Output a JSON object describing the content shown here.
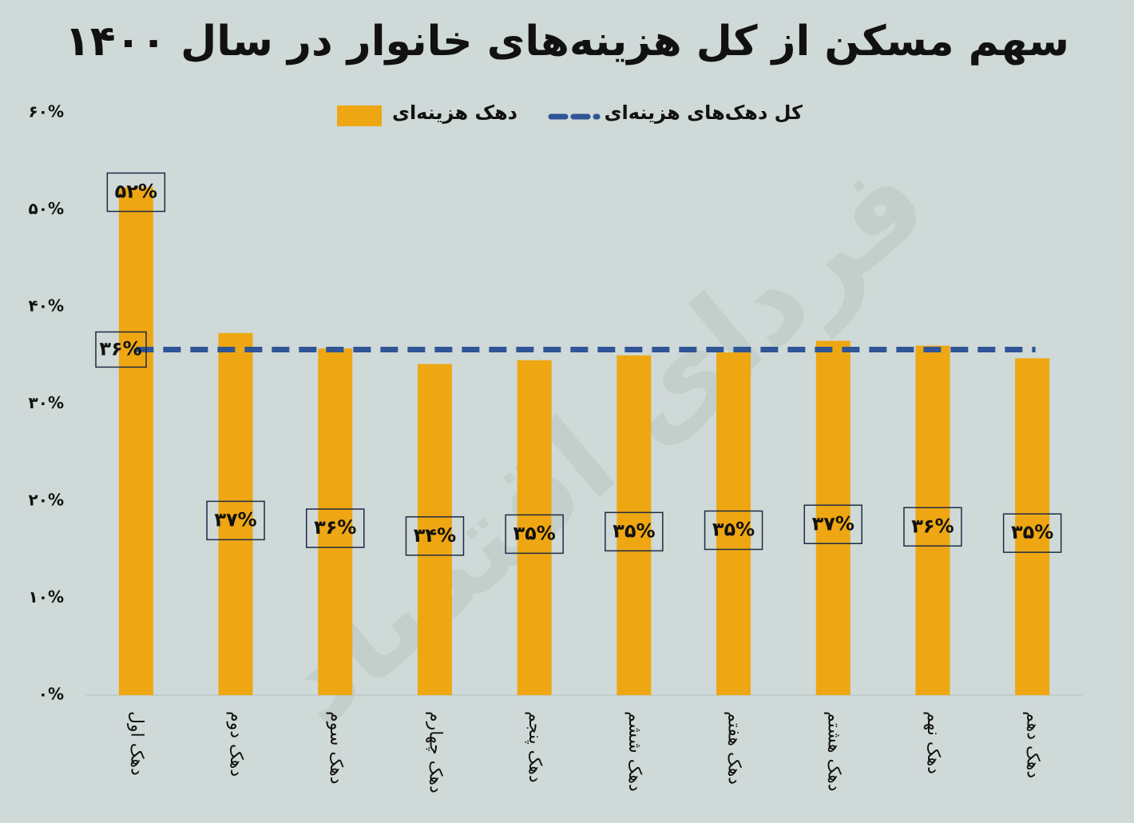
{
  "chart_data": {
    "type": "bar",
    "title": "سهم مسکن از کل هزینه‌های خانوار در سال ۱۴۰۰",
    "watermark": "فردای اقتصاد",
    "categories": [
      "دهک اول",
      "دهک دوم",
      "دهک سوم",
      "دهک چهارم",
      "دهک پنجم",
      "دهک ششم",
      "دهک هفتم",
      "دهک هشتم",
      "دهک نهم",
      "دهک دهم"
    ],
    "series": [
      {
        "name": "دهک هزینه‌ای",
        "color": "#eea712",
        "values": [
          52.3,
          37.3,
          35.7,
          34.1,
          34.5,
          35.0,
          35.3,
          36.5,
          36.0,
          34.7
        ],
        "value_labels": [
          "۵۲%",
          "۳۷%",
          "۳۶%",
          "۳۴%",
          "۳۵%",
          "۳۵%",
          "۳۵%",
          "۳۷%",
          "۳۶%",
          "۳۵%"
        ]
      }
    ],
    "reference_line": {
      "name": "کل دهک‌های هزینه‌ای",
      "color": "#2f5597",
      "value": 35.6,
      "value_label": "۳۶%"
    },
    "ylim": [
      0,
      60
    ],
    "yticks": [
      {
        "value": 0,
        "label": "۰%"
      },
      {
        "value": 10,
        "label": "۱۰%"
      },
      {
        "value": 20,
        "label": "۲۰%"
      },
      {
        "value": 30,
        "label": "۳۰%"
      },
      {
        "value": 40,
        "label": "۴۰%"
      },
      {
        "value": 50,
        "label": "۵۰%"
      },
      {
        "value": 60,
        "label": "۶۰%"
      }
    ],
    "grid": false
  }
}
